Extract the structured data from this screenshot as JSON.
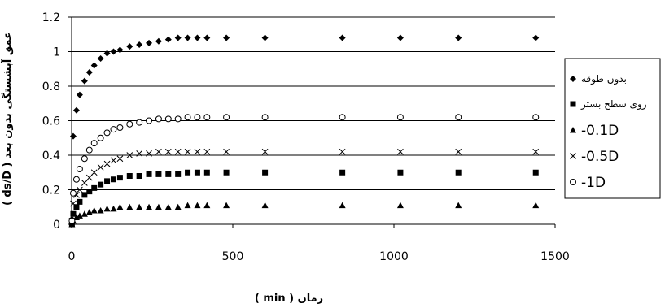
{
  "chart_data": {
    "type": "scatter",
    "xlabel": "زمان ( min )",
    "ylabel": "عمق آبشستگی بدون بعد ( ds/D )",
    "xlim": [
      0,
      1500
    ],
    "ylim": [
      0,
      1.2
    ],
    "xticks": [
      "0",
      "500",
      "1000",
      "1500"
    ],
    "yticks": [
      "0",
      "0.2",
      "0.4",
      "0.6",
      "0.8",
      "1",
      "1.2"
    ],
    "grid": "horizontal",
    "legend_position": "right",
    "series": [
      {
        "name": "بدون طوقه",
        "marker": "diamond",
        "x": [
          1,
          5,
          15,
          25,
          40,
          55,
          70,
          90,
          110,
          130,
          150,
          180,
          210,
          240,
          270,
          300,
          330,
          360,
          390,
          420,
          480,
          600,
          840,
          1020,
          1200,
          1440
        ],
        "y": [
          0.03,
          0.51,
          0.66,
          0.75,
          0.83,
          0.88,
          0.92,
          0.96,
          0.99,
          1.0,
          1.01,
          1.03,
          1.04,
          1.05,
          1.06,
          1.07,
          1.08,
          1.08,
          1.08,
          1.08,
          1.08,
          1.08,
          1.08,
          1.08,
          1.08,
          1.08
        ]
      },
      {
        "name": "روی سطح بستر",
        "marker": "square",
        "x": [
          1,
          5,
          15,
          25,
          40,
          55,
          70,
          90,
          110,
          130,
          150,
          180,
          210,
          240,
          270,
          300,
          330,
          360,
          390,
          420,
          480,
          600,
          840,
          1020,
          1200,
          1440
        ],
        "y": [
          0.0,
          0.06,
          0.1,
          0.13,
          0.17,
          0.19,
          0.21,
          0.23,
          0.25,
          0.26,
          0.27,
          0.28,
          0.28,
          0.29,
          0.29,
          0.29,
          0.29,
          0.3,
          0.3,
          0.3,
          0.3,
          0.3,
          0.3,
          0.3,
          0.3,
          0.3
        ]
      },
      {
        "name": "-0.1D",
        "marker": "triangle",
        "x": [
          1,
          5,
          15,
          25,
          40,
          55,
          70,
          90,
          110,
          130,
          150,
          180,
          210,
          240,
          270,
          300,
          330,
          360,
          390,
          420,
          480,
          600,
          840,
          1020,
          1200,
          1440
        ],
        "y": [
          0.0,
          0.02,
          0.04,
          0.05,
          0.06,
          0.07,
          0.08,
          0.08,
          0.09,
          0.09,
          0.1,
          0.1,
          0.1,
          0.1,
          0.1,
          0.1,
          0.1,
          0.11,
          0.11,
          0.11,
          0.11,
          0.11,
          0.11,
          0.11,
          0.11,
          0.11
        ]
      },
      {
        "name": "-0.5D",
        "marker": "x",
        "x": [
          1,
          5,
          15,
          25,
          40,
          55,
          70,
          90,
          110,
          130,
          150,
          180,
          210,
          240,
          270,
          300,
          330,
          360,
          390,
          420,
          480,
          600,
          840,
          1020,
          1200,
          1440
        ],
        "y": [
          0.02,
          0.12,
          0.17,
          0.2,
          0.24,
          0.27,
          0.3,
          0.33,
          0.35,
          0.37,
          0.38,
          0.4,
          0.41,
          0.41,
          0.42,
          0.42,
          0.42,
          0.42,
          0.42,
          0.42,
          0.42,
          0.42,
          0.42,
          0.42,
          0.42,
          0.42
        ]
      },
      {
        "name": "-1D",
        "marker": "circle",
        "x": [
          1,
          5,
          15,
          25,
          40,
          55,
          70,
          90,
          110,
          130,
          150,
          180,
          210,
          240,
          270,
          300,
          330,
          360,
          390,
          420,
          480,
          600,
          840,
          1020,
          1200,
          1440
        ],
        "y": [
          0.02,
          0.18,
          0.26,
          0.32,
          0.38,
          0.43,
          0.47,
          0.5,
          0.53,
          0.55,
          0.56,
          0.58,
          0.59,
          0.6,
          0.61,
          0.61,
          0.61,
          0.62,
          0.62,
          0.62,
          0.62,
          0.62,
          0.62,
          0.62,
          0.62,
          0.62
        ]
      }
    ]
  }
}
